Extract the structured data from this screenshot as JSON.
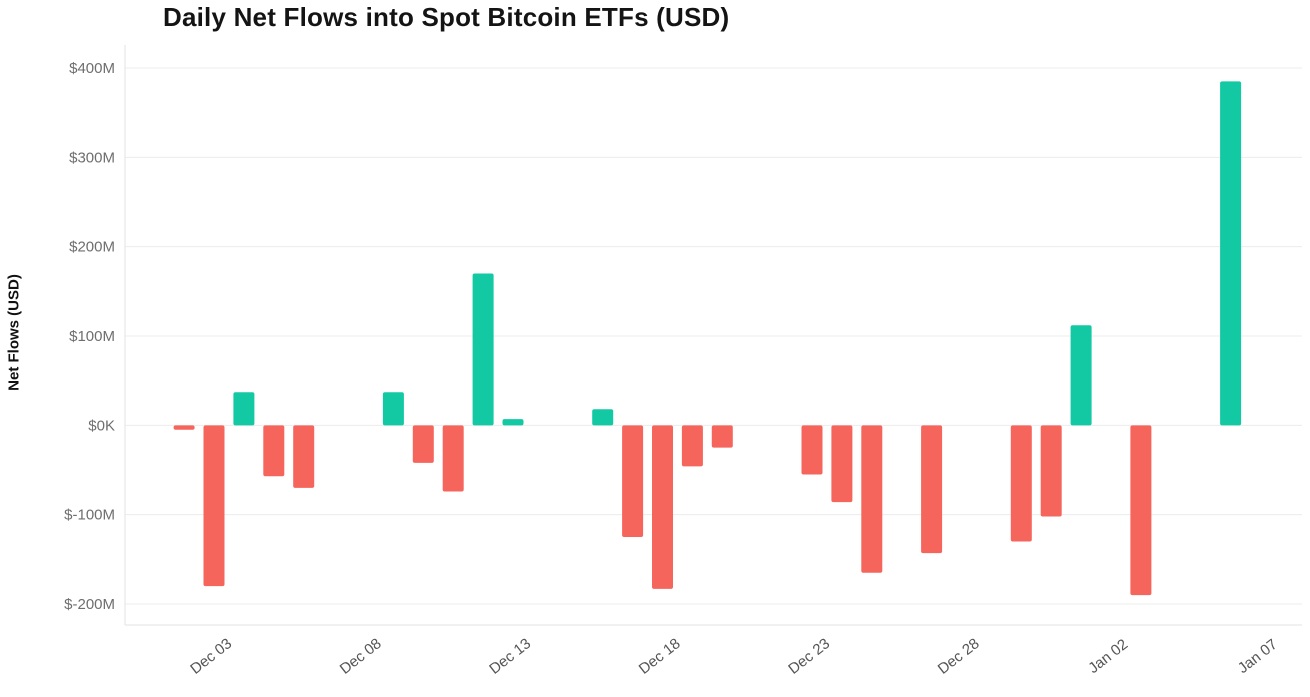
{
  "chart_data": {
    "type": "bar",
    "title": "Daily Net Flows into Spot Bitcoin ETFs (USD)",
    "ylabel": "Net Flows (USD)",
    "xlabel": "",
    "unit": "USD millions",
    "ylim": [
      -200,
      400
    ],
    "grid": true,
    "legend": "none",
    "colors": {
      "positive": "#12c9a3",
      "negative": "#f5655c",
      "gridline": "#ececec",
      "axis": "#e3e3e3"
    },
    "y_ticks": [
      {
        "value": 400,
        "label": "$400M"
      },
      {
        "value": 300,
        "label": "$300M"
      },
      {
        "value": 200,
        "label": "$200M"
      },
      {
        "value": 100,
        "label": "$100M"
      },
      {
        "value": 0,
        "label": "$0K"
      },
      {
        "value": -100,
        "label": "$-100M"
      },
      {
        "value": -200,
        "label": "$-200M"
      }
    ],
    "x_ticks": [
      "Dec 03",
      "Dec 08",
      "Dec 13",
      "Dec 18",
      "Dec 23",
      "Dec 28",
      "Jan 02",
      "Jan 07"
    ],
    "points": [
      {
        "date": "Dec 02",
        "value": -5
      },
      {
        "date": "Dec 03",
        "value": -180
      },
      {
        "date": "Dec 04",
        "value": 37
      },
      {
        "date": "Dec 05",
        "value": -57
      },
      {
        "date": "Dec 06",
        "value": -70
      },
      {
        "date": "Dec 09",
        "value": 37
      },
      {
        "date": "Dec 10",
        "value": -42
      },
      {
        "date": "Dec 11",
        "value": -74
      },
      {
        "date": "Dec 12",
        "value": 170
      },
      {
        "date": "Dec 13",
        "value": 7
      },
      {
        "date": "Dec 16",
        "value": 18
      },
      {
        "date": "Dec 17",
        "value": -125
      },
      {
        "date": "Dec 18",
        "value": -183
      },
      {
        "date": "Dec 19",
        "value": -46
      },
      {
        "date": "Dec 20",
        "value": -25
      },
      {
        "date": "Dec 23",
        "value": -55
      },
      {
        "date": "Dec 24",
        "value": -86
      },
      {
        "date": "Dec 25",
        "value": -165
      },
      {
        "date": "Dec 27",
        "value": -143
      },
      {
        "date": "Dec 30",
        "value": -130
      },
      {
        "date": "Dec 31",
        "value": -102
      },
      {
        "date": "Jan 01",
        "value": 112
      },
      {
        "date": "Jan 03",
        "value": -190
      },
      {
        "date": "Jan 06",
        "value": 385
      }
    ]
  }
}
